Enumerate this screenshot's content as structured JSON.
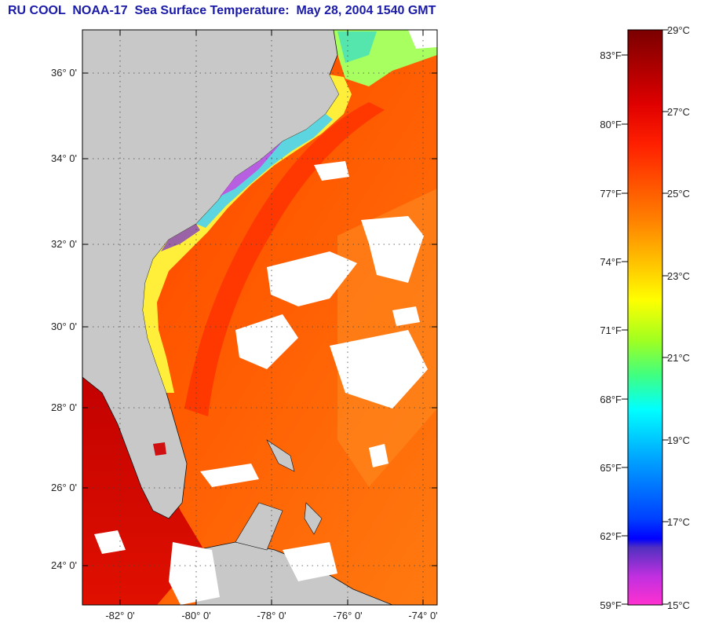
{
  "title": "RU COOL  NOAA-17  Sea Surface Temperature:  May 28, 2004 1540 GMT",
  "map": {
    "lat_labels": [
      "36° 0'",
      "34° 0'",
      "32° 0'",
      "30° 0'",
      "28° 0'",
      "26° 0'",
      "24° 0'"
    ],
    "lon_labels": [
      "-82° 0'",
      "-80° 0'",
      "-78° 0'",
      "-76° 0'",
      "-74° 0'"
    ],
    "land_color": "#c8c8c8",
    "cloud_color": "#ffffff"
  },
  "colorbar": {
    "celsius_labels": [
      "29°C",
      "27°C",
      "25°C",
      "23°C",
      "21°C",
      "19°C",
      "17°C",
      "15°C"
    ],
    "fahrenheit_labels": [
      "83°F",
      "80°F",
      "77°F",
      "74°F",
      "71°F",
      "68°F",
      "65°F",
      "62°F",
      "59°F"
    ],
    "colors": [
      "#8b0000",
      "#ff1a00",
      "#ff8c00",
      "#ffff00",
      "#7cfc00",
      "#00ffff",
      "#0080ff",
      "#0000ff",
      "#8040c0",
      "#ff33cc"
    ]
  }
}
